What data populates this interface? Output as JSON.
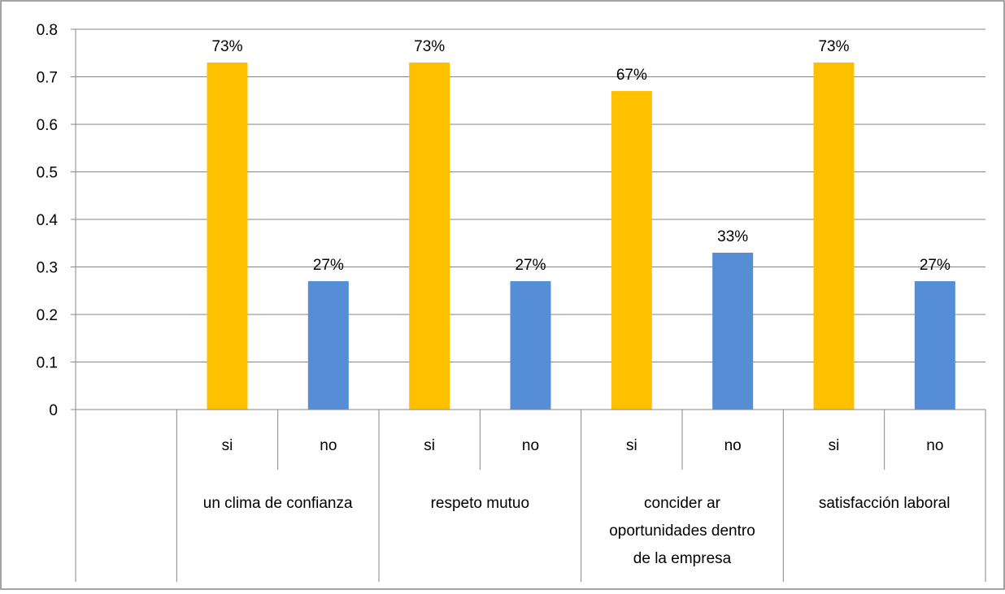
{
  "chart_data": {
    "type": "bar",
    "title": "",
    "xlabel": "",
    "ylabel": "",
    "ylim": [
      0,
      0.8
    ],
    "yticks": [
      "0",
      "0.1",
      "0.2",
      "0.3",
      "0.4",
      "0.5",
      "0.6",
      "0.7",
      "0.8"
    ],
    "grid": true,
    "legend": "none",
    "group_labels": [
      [
        "un clima de confianza"
      ],
      [
        "respeto mutuo"
      ],
      [
        "concider ar",
        "oportunidades dentro",
        "de la empresa"
      ],
      [
        "satisfacción laboral"
      ]
    ],
    "bars": [
      {
        "group": 0,
        "label": "si",
        "value": 0.73,
        "data_label": "73%",
        "color": "#FFC000"
      },
      {
        "group": 0,
        "label": "no",
        "value": 0.27,
        "data_label": "27%",
        "color": "#558ED5"
      },
      {
        "group": 1,
        "label": "si",
        "value": 0.73,
        "data_label": "73%",
        "color": "#FFC000"
      },
      {
        "group": 1,
        "label": "no",
        "value": 0.27,
        "data_label": "27%",
        "color": "#558ED5"
      },
      {
        "group": 2,
        "label": "si",
        "value": 0.67,
        "data_label": "67%",
        "color": "#FFC000"
      },
      {
        "group": 2,
        "label": "no",
        "value": 0.33,
        "data_label": "33%",
        "color": "#558ED5"
      },
      {
        "group": 3,
        "label": "si",
        "value": 0.73,
        "data_label": "73%",
        "color": "#FFC000"
      },
      {
        "group": 3,
        "label": "no",
        "value": 0.27,
        "data_label": "27%",
        "color": "#558ED5"
      }
    ],
    "colors": {
      "si": "#FFC000",
      "no": "#558ED5",
      "grid": "#868686",
      "frame": "#868686"
    }
  }
}
